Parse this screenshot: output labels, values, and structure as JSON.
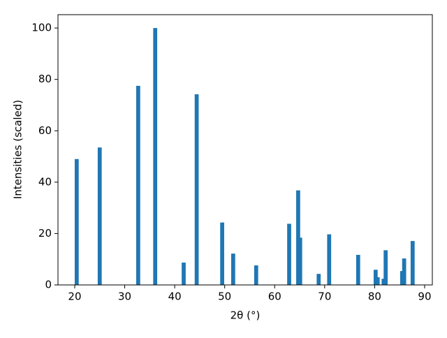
{
  "chart_data": {
    "type": "bar",
    "x": [
      20.4,
      25.0,
      32.7,
      36.1,
      41.8,
      44.4,
      49.5,
      51.7,
      56.3,
      62.9,
      64.7,
      65.1,
      68.8,
      70.9,
      76.7,
      80.2,
      80.6,
      81.8,
      82.2,
      85.5,
      85.9,
      87.6
    ],
    "values": [
      49,
      53.5,
      77.5,
      100,
      8.7,
      74.2,
      24.3,
      12.2,
      7.6,
      23.8,
      36.8,
      18.4,
      4.3,
      19.7,
      11.7,
      5.9,
      3,
      2.4,
      13.5,
      5.4,
      10.3,
      17.1
    ],
    "bar_width": 0.8,
    "color": "#1f77b4",
    "xlabel": "2θ (°)",
    "ylabel": "Intensities (scaled)",
    "xlim": [
      16.65,
      91.54
    ],
    "ylim": [
      0,
      105.2
    ],
    "xticks": [
      20,
      30,
      40,
      50,
      60,
      70,
      80,
      90
    ],
    "yticks": [
      0,
      20,
      40,
      60,
      80,
      100
    ]
  }
}
